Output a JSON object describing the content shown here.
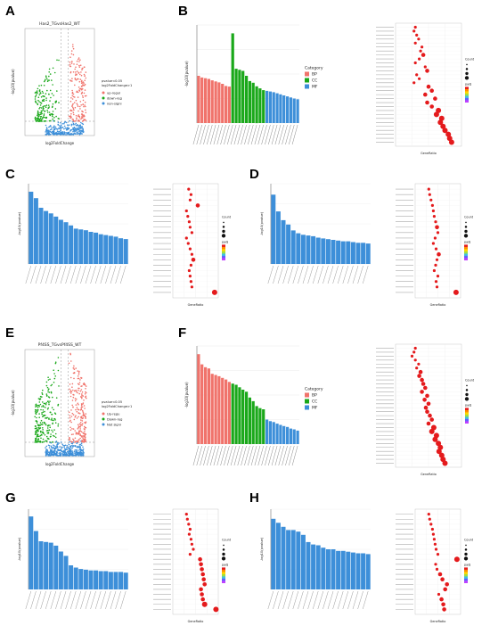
{
  "labels": {
    "A": "A",
    "B": "B",
    "C": "C",
    "D": "D",
    "E": "E",
    "F": "F",
    "G": "G",
    "H": "H"
  },
  "colors": {
    "bp": "#f0736b",
    "cc": "#1aa81a",
    "mf": "#3d8fd9",
    "single": "#3d8fd9",
    "up": "#f0736b",
    "down": "#1aa81a",
    "nosig": "#3d8fd9",
    "dot": "#e41a1c"
  },
  "panel_a": {
    "title": "Has2_TGvsHas2_WT",
    "xlabel": "log2FoldChange",
    "ylabel": "-log10(pvalue)",
    "legend_title": "pvalue<0.05\nlog2FoldChange>1",
    "legend_items": [
      "up-regul",
      "down-reg",
      "non-signi"
    ]
  },
  "panel_e": {
    "title": "Pf4SS_TGvsPf4SS_WT",
    "xlabel": "log2FoldChange",
    "ylabel": "-log10(pvalue)",
    "legend_title": "pvalue<0.05\nlog2FoldChange>1",
    "legend_items": [
      "Up-regu",
      "Down-reg",
      "Not signi"
    ]
  },
  "panel_b": {
    "ylabel": "-log10(pvalue)",
    "legend_title": "Category",
    "legend_items": [
      "BP",
      "CC",
      "MF"
    ],
    "bars": [
      {
        "v": 13.5,
        "c": "bp"
      },
      {
        "v": 13.0,
        "c": "bp"
      },
      {
        "v": 12.8,
        "c": "bp"
      },
      {
        "v": 12.6,
        "c": "bp"
      },
      {
        "v": 12.2,
        "c": "bp"
      },
      {
        "v": 11.9,
        "c": "bp"
      },
      {
        "v": 11.6,
        "c": "bp"
      },
      {
        "v": 11.2,
        "c": "bp"
      },
      {
        "v": 10.6,
        "c": "bp"
      },
      {
        "v": 10.4,
        "c": "bp"
      },
      {
        "v": 25.6,
        "c": "cc"
      },
      {
        "v": 15.5,
        "c": "cc"
      },
      {
        "v": 15.2,
        "c": "cc"
      },
      {
        "v": 14.9,
        "c": "cc"
      },
      {
        "v": 13.5,
        "c": "cc"
      },
      {
        "v": 12.0,
        "c": "cc"
      },
      {
        "v": 11.5,
        "c": "cc"
      },
      {
        "v": 10.5,
        "c": "cc"
      },
      {
        "v": 9.9,
        "c": "cc"
      },
      {
        "v": 9.4,
        "c": "cc"
      },
      {
        "v": 9.2,
        "c": "mf"
      },
      {
        "v": 9.0,
        "c": "mf"
      },
      {
        "v": 8.8,
        "c": "mf"
      },
      {
        "v": 8.5,
        "c": "mf"
      },
      {
        "v": 8.2,
        "c": "mf"
      },
      {
        "v": 7.9,
        "c": "mf"
      },
      {
        "v": 7.6,
        "c": "mf"
      },
      {
        "v": 7.3,
        "c": "mf"
      },
      {
        "v": 7.0,
        "c": "mf"
      },
      {
        "v": 6.8,
        "c": "mf"
      }
    ],
    "ymax": 28
  },
  "panel_f": {
    "ylabel": "-log10(pvalue)",
    "legend_title": "Category",
    "legend_items": [
      "BP",
      "CC",
      "MF"
    ],
    "bars": [
      {
        "v": 22.0,
        "c": "bp"
      },
      {
        "v": 19.5,
        "c": "bp"
      },
      {
        "v": 18.8,
        "c": "bp"
      },
      {
        "v": 18.5,
        "c": "bp"
      },
      {
        "v": 17.2,
        "c": "bp"
      },
      {
        "v": 16.9,
        "c": "bp"
      },
      {
        "v": 16.6,
        "c": "bp"
      },
      {
        "v": 16.2,
        "c": "bp"
      },
      {
        "v": 15.8,
        "c": "bp"
      },
      {
        "v": 15.2,
        "c": "bp"
      },
      {
        "v": 14.8,
        "c": "cc"
      },
      {
        "v": 14.5,
        "c": "cc"
      },
      {
        "v": 13.9,
        "c": "cc"
      },
      {
        "v": 13.3,
        "c": "cc"
      },
      {
        "v": 12.8,
        "c": "cc"
      },
      {
        "v": 11.4,
        "c": "cc"
      },
      {
        "v": 10.5,
        "c": "cc"
      },
      {
        "v": 9.3,
        "c": "cc"
      },
      {
        "v": 8.8,
        "c": "cc"
      },
      {
        "v": 8.5,
        "c": "cc"
      },
      {
        "v": 6.0,
        "c": "mf"
      },
      {
        "v": 5.6,
        "c": "mf"
      },
      {
        "v": 5.4,
        "c": "mf"
      },
      {
        "v": 5.0,
        "c": "mf"
      },
      {
        "v": 4.7,
        "c": "mf"
      },
      {
        "v": 4.4,
        "c": "mf"
      },
      {
        "v": 4.2,
        "c": "mf"
      },
      {
        "v": 3.8,
        "c": "mf"
      },
      {
        "v": 3.6,
        "c": "mf"
      },
      {
        "v": 3.3,
        "c": "mf"
      }
    ],
    "ymax": 24
  },
  "panel_c": {
    "ylabel": "-log10(pvalue)",
    "bars": [
      9.0,
      8.2,
      7.0,
      6.6,
      6.3,
      5.9,
      5.5,
      5.2,
      4.8,
      4.4,
      4.3,
      4.2,
      4.0,
      3.9,
      3.7,
      3.6,
      3.5,
      3.4,
      3.2,
      3.1
    ],
    "ymax": 10
  },
  "panel_d": {
    "ylabel": "-log10(pvalue)",
    "bars": [
      9.5,
      7.2,
      6.0,
      5.4,
      4.6,
      4.2,
      4.0,
      3.9,
      3.8,
      3.6,
      3.5,
      3.4,
      3.3,
      3.2,
      3.1,
      3.1,
      3.0,
      2.9,
      2.9,
      2.8
    ],
    "ymax": 11
  },
  "panel_g": {
    "ylabel": "-log10(pvalue)",
    "bars": [
      10.0,
      8.0,
      6.6,
      6.5,
      6.4,
      6.0,
      5.2,
      4.6,
      3.3,
      3.0,
      2.8,
      2.7,
      2.6,
      2.6,
      2.5,
      2.5,
      2.4,
      2.4,
      2.4,
      2.3
    ],
    "ymax": 11
  },
  "panel_h": {
    "ylabel": "-log10(pvalue)",
    "bars": [
      8.8,
      8.3,
      7.8,
      7.4,
      7.4,
      7.2,
      6.8,
      5.9,
      5.6,
      5.5,
      5.2,
      5.0,
      5.0,
      4.8,
      4.8,
      4.7,
      4.6,
      4.5,
      4.5,
      4.4
    ],
    "ymax": 10
  },
  "dotplots": {
    "xlabel": "GeneRatio",
    "count_title": "Count",
    "padj_title": "padj",
    "b": {
      "n": 30,
      "dots": [
        [
          0.3,
          1
        ],
        [
          0.28,
          1
        ],
        [
          0.32,
          1
        ],
        [
          0.35,
          1
        ],
        [
          0.3,
          1
        ],
        [
          0.4,
          1
        ],
        [
          0.38,
          1
        ],
        [
          0.42,
          2
        ],
        [
          0.36,
          1
        ],
        [
          0.3,
          1
        ],
        [
          0.45,
          1
        ],
        [
          0.48,
          2
        ],
        [
          0.32,
          1
        ],
        [
          0.36,
          1
        ],
        [
          0.28,
          1
        ],
        [
          0.5,
          2
        ],
        [
          0.55,
          2
        ],
        [
          0.45,
          2
        ],
        [
          0.6,
          2
        ],
        [
          0.48,
          2
        ],
        [
          0.55,
          2
        ],
        [
          0.65,
          3
        ],
        [
          0.62,
          3
        ],
        [
          0.7,
          3
        ],
        [
          0.68,
          3
        ],
        [
          0.72,
          3
        ],
        [
          0.75,
          3
        ],
        [
          0.8,
          3
        ],
        [
          0.82,
          3
        ],
        [
          0.85,
          3
        ]
      ]
    },
    "c": {
      "n": 20,
      "dots": [
        [
          0.35,
          1
        ],
        [
          0.4,
          1
        ],
        [
          0.38,
          1
        ],
        [
          0.55,
          2
        ],
        [
          0.3,
          1
        ],
        [
          0.33,
          1
        ],
        [
          0.36,
          1
        ],
        [
          0.38,
          1
        ],
        [
          0.42,
          1
        ],
        [
          0.3,
          1
        ],
        [
          0.34,
          1
        ],
        [
          0.38,
          1
        ],
        [
          0.42,
          1
        ],
        [
          0.45,
          2
        ],
        [
          0.4,
          1
        ],
        [
          0.36,
          1
        ],
        [
          0.38,
          1
        ],
        [
          0.4,
          1
        ],
        [
          0.42,
          1
        ],
        [
          0.92,
          3
        ]
      ]
    },
    "d": {
      "n": 20,
      "dots": [
        [
          0.3,
          1
        ],
        [
          0.32,
          1
        ],
        [
          0.35,
          1
        ],
        [
          0.38,
          1
        ],
        [
          0.4,
          1
        ],
        [
          0.42,
          1
        ],
        [
          0.45,
          1
        ],
        [
          0.48,
          2
        ],
        [
          0.5,
          1
        ],
        [
          0.44,
          1
        ],
        [
          0.4,
          1
        ],
        [
          0.46,
          1
        ],
        [
          0.52,
          2
        ],
        [
          0.48,
          1
        ],
        [
          0.45,
          1
        ],
        [
          0.42,
          1
        ],
        [
          0.5,
          1
        ],
        [
          0.46,
          1
        ],
        [
          0.48,
          1
        ],
        [
          0.9,
          3
        ]
      ]
    },
    "f": {
      "n": 30,
      "dots": [
        [
          0.3,
          1
        ],
        [
          0.28,
          1
        ],
        [
          0.25,
          1
        ],
        [
          0.3,
          1
        ],
        [
          0.35,
          1
        ],
        [
          0.32,
          1
        ],
        [
          0.38,
          2
        ],
        [
          0.36,
          2
        ],
        [
          0.4,
          2
        ],
        [
          0.42,
          2
        ],
        [
          0.45,
          2
        ],
        [
          0.4,
          2
        ],
        [
          0.48,
          2
        ],
        [
          0.44,
          2
        ],
        [
          0.5,
          2
        ],
        [
          0.46,
          2
        ],
        [
          0.48,
          2
        ],
        [
          0.52,
          2
        ],
        [
          0.55,
          2
        ],
        [
          0.5,
          2
        ],
        [
          0.58,
          3
        ],
        [
          0.55,
          3
        ],
        [
          0.62,
          3
        ],
        [
          0.6,
          3
        ],
        [
          0.65,
          3
        ],
        [
          0.68,
          3
        ],
        [
          0.66,
          3
        ],
        [
          0.7,
          3
        ],
        [
          0.72,
          3
        ],
        [
          0.75,
          3
        ]
      ]
    },
    "g": {
      "n": 20,
      "dots": [
        [
          0.3,
          1
        ],
        [
          0.32,
          1
        ],
        [
          0.35,
          1
        ],
        [
          0.38,
          1
        ],
        [
          0.36,
          1
        ],
        [
          0.4,
          1
        ],
        [
          0.42,
          1
        ],
        [
          0.45,
          1
        ],
        [
          0.38,
          1
        ],
        [
          0.6,
          2
        ],
        [
          0.62,
          2
        ],
        [
          0.64,
          2
        ],
        [
          0.66,
          2
        ],
        [
          0.68,
          2
        ],
        [
          0.7,
          2
        ],
        [
          0.62,
          2
        ],
        [
          0.64,
          2
        ],
        [
          0.66,
          2
        ],
        [
          0.7,
          3
        ],
        [
          0.95,
          3
        ]
      ]
    },
    "h": {
      "n": 20,
      "dots": [
        [
          0.3,
          1
        ],
        [
          0.32,
          1
        ],
        [
          0.35,
          1
        ],
        [
          0.38,
          1
        ],
        [
          0.4,
          1
        ],
        [
          0.42,
          1
        ],
        [
          0.44,
          1
        ],
        [
          0.46,
          1
        ],
        [
          0.5,
          1
        ],
        [
          0.92,
          3
        ],
        [
          0.45,
          1
        ],
        [
          0.48,
          1
        ],
        [
          0.55,
          2
        ],
        [
          0.6,
          2
        ],
        [
          0.7,
          2
        ],
        [
          0.66,
          2
        ],
        [
          0.52,
          1
        ],
        [
          0.58,
          2
        ],
        [
          0.62,
          2
        ],
        [
          0.64,
          2
        ]
      ]
    }
  }
}
